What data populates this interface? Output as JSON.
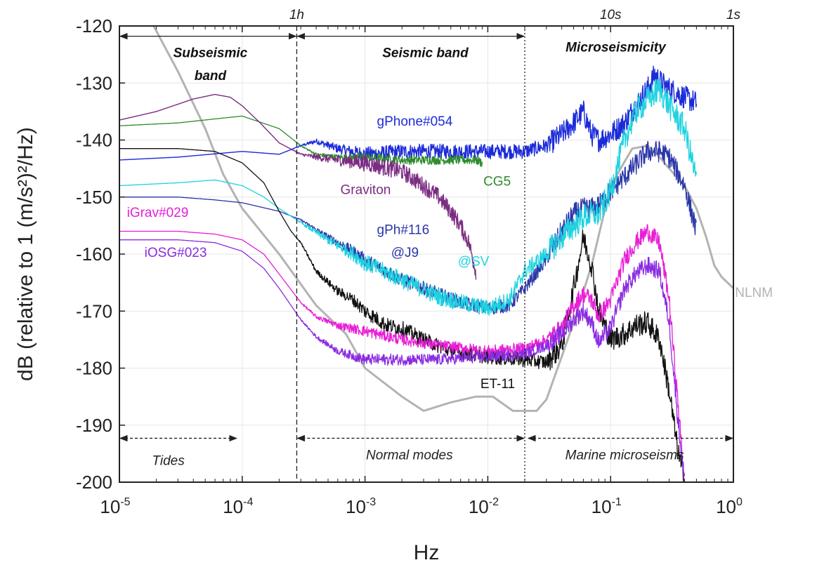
{
  "chart_data": {
    "type": "line",
    "xlabel": "Hz",
    "ylabel": "dB (relative to 1 (m/s²)²/Hz)",
    "x_scale": "log",
    "xlim": [
      1e-05,
      1
    ],
    "ylim": [
      -200,
      -120
    ],
    "x_ticks": [
      {
        "value": 1e-05,
        "base": "10",
        "exp": "-5"
      },
      {
        "value": 0.0001,
        "base": "10",
        "exp": "-4"
      },
      {
        "value": 0.001,
        "base": "10",
        "exp": "-3"
      },
      {
        "value": 0.01,
        "base": "10",
        "exp": "-2"
      },
      {
        "value": 0.1,
        "base": "10",
        "exp": "-1"
      },
      {
        "value": 1,
        "base": "10",
        "exp": "0"
      }
    ],
    "y_ticks": [
      -120,
      -130,
      -140,
      -150,
      -160,
      -170,
      -180,
      -190,
      -200
    ],
    "top_periods": [
      {
        "label": "1h",
        "x": 0.000278
      },
      {
        "label": "10s",
        "x": 0.1
      },
      {
        "label": "1s",
        "x": 1
      }
    ],
    "band_titles": [
      {
        "label": "Subseismic",
        "x": 5.5e-05,
        "y": -125.5
      },
      {
        "label": "band",
        "x": 5.5e-05,
        "y": -129.5
      },
      {
        "label": "Seismic band",
        "x": 0.0031,
        "y": -125.5
      },
      {
        "label": "Microseismicity",
        "x": 0.11,
        "y": -124.5
      }
    ],
    "bottom_regions": [
      {
        "label": "Tides",
        "x": 2.5e-05,
        "y": -197
      },
      {
        "label": "Normal modes",
        "x": 0.0023,
        "y": -196
      },
      {
        "label": "Marine microseisms",
        "x": 0.13,
        "y": -196
      }
    ],
    "dividers": [
      {
        "x": 0.000278,
        "style": "dashed"
      },
      {
        "x": 0.02,
        "style": "dotted"
      }
    ],
    "series": [
      {
        "name": "NLNM",
        "color": "#b3b3b3",
        "width": 3,
        "x": [
          1.9e-05,
          3e-05,
          5e-05,
          7e-05,
          0.0001,
          0.0002,
          0.0004,
          0.0007,
          0.001,
          0.002,
          0.003,
          0.005,
          0.008,
          0.011,
          0.016,
          0.025,
          0.03,
          0.04,
          0.05,
          0.07,
          0.1,
          0.15,
          0.2,
          0.25,
          0.3,
          0.4,
          0.5,
          0.6,
          0.7,
          0.8,
          1
        ],
        "y": [
          -120,
          -128,
          -138,
          -146,
          -152,
          -160,
          -169,
          -174,
          -180,
          -185,
          -187.5,
          -186,
          -185,
          -185,
          -187.5,
          -187.5,
          -185.5,
          -178,
          -172,
          -162,
          -148,
          -141.5,
          -141,
          -143,
          -145,
          -148,
          -152,
          -157,
          -162,
          -164,
          -166
        ],
        "label": {
          "text": "NLNM",
          "x": 1.03,
          "y": -167.5,
          "color": "#b3b3b3",
          "size": 27
        }
      },
      {
        "name": "gPhone#054",
        "color": "#1c2bd9",
        "width": 1.4,
        "x": [
          1e-05,
          3e-05,
          0.0001,
          0.0002,
          0.0003,
          0.0004,
          0.0006,
          0.001,
          0.002,
          0.005,
          0.01,
          0.02,
          0.03,
          0.04,
          0.05,
          0.06,
          0.07,
          0.08,
          0.1,
          0.13,
          0.16,
          0.2,
          0.23,
          0.26,
          0.3,
          0.4,
          0.5
        ],
        "y": [
          -143.5,
          -143,
          -142,
          -142.5,
          -141,
          -140.2,
          -141.5,
          -142.5,
          -142,
          -142,
          -142,
          -142,
          -141,
          -139,
          -137,
          -135,
          -139,
          -140,
          -139,
          -137,
          -134,
          -131,
          -128.5,
          -130,
          -131,
          -132.5,
          -133.5
        ],
        "noise": 1.3,
        "label": {
          "text": "gPhone#054",
          "x": 0.00125,
          "y": -137.5,
          "color": "#1c2bd9",
          "size": 19
        }
      },
      {
        "name": "CG5",
        "color": "#2e8b2e",
        "width": 1.3,
        "x": [
          1e-05,
          3e-05,
          6e-05,
          0.0001,
          0.0002,
          0.0003,
          0.0004,
          0.0006,
          0.001,
          0.002,
          0.004,
          0.006,
          0.008,
          0.009
        ],
        "y": [
          -137.5,
          -137,
          -136.3,
          -135.8,
          -138,
          -141,
          -142.5,
          -143,
          -143,
          -143.5,
          -143.5,
          -143.5,
          -143.5,
          -144
        ],
        "noise": 0.8,
        "label": {
          "text": "CG5",
          "x": 0.0092,
          "y": -148,
          "color": "#2e8b2e",
          "size": 19
        }
      },
      {
        "name": "Graviton",
        "color": "#7b2d82",
        "width": 1.4,
        "x": [
          1e-05,
          2e-05,
          4e-05,
          6e-05,
          8e-05,
          0.0001,
          0.00014,
          0.0002,
          0.0003,
          0.0004,
          0.0006,
          0.001,
          0.002,
          0.003,
          0.004,
          0.005,
          0.006,
          0.007,
          0.008
        ],
        "y": [
          -136.5,
          -135,
          -132.8,
          -132,
          -132.5,
          -134,
          -137,
          -140.5,
          -142.5,
          -143,
          -143.5,
          -144,
          -145.5,
          -148,
          -150,
          -152.5,
          -155,
          -158,
          -163
        ],
        "noise": 1.5,
        "label": {
          "text": "Graviton",
          "x": 0.00063,
          "y": -149.5,
          "color": "#7b2d82",
          "size": 19
        }
      },
      {
        "name": "gPh#116 @J9",
        "color": "#2a36a8",
        "width": 1.3,
        "x": [
          1e-05,
          3e-05,
          6e-05,
          0.0001,
          0.0002,
          0.0003,
          0.0005,
          0.0008,
          0.001,
          0.002,
          0.004,
          0.006,
          0.01,
          0.015,
          0.02,
          0.03,
          0.04,
          0.05,
          0.06,
          0.07,
          0.08,
          0.1,
          0.15,
          0.2,
          0.25,
          0.3,
          0.4,
          0.5
        ],
        "y": [
          -150,
          -150,
          -150.5,
          -151,
          -152.5,
          -154,
          -157,
          -159.5,
          -161,
          -164.5,
          -167,
          -168.5,
          -169.5,
          -169,
          -166,
          -161,
          -156,
          -153,
          -152,
          -152,
          -151.5,
          -149,
          -145,
          -142,
          -142,
          -143,
          -148,
          -156
        ],
        "noise": 1.2,
        "label": {
          "text": "gPh#116",
          "x": 0.00125,
          "y": -156.5,
          "color": "#2a36a8",
          "size": 19
        }
      },
      {
        "name": "@SV",
        "color": "#1fd2e0",
        "width": 1.3,
        "x": [
          1e-05,
          3e-05,
          6e-05,
          0.0001,
          0.00015,
          0.0002,
          0.0003,
          0.0005,
          0.0008,
          0.001,
          0.002,
          0.004,
          0.006,
          0.01,
          0.015,
          0.02,
          0.03,
          0.04,
          0.05,
          0.06,
          0.07,
          0.08,
          0.1,
          0.13,
          0.16,
          0.2,
          0.25,
          0.3,
          0.4,
          0.5
        ],
        "y": [
          -148,
          -147.5,
          -147,
          -148,
          -150,
          -152,
          -154.5,
          -157.5,
          -160,
          -161.5,
          -164.5,
          -167.5,
          -168.5,
          -169.5,
          -168,
          -163,
          -160,
          -157,
          -155,
          -153.5,
          -153,
          -153,
          -149,
          -140,
          -135,
          -133,
          -131,
          -134,
          -138,
          -147
        ],
        "noise": 1.5,
        "label": {
          "text": "@SV",
          "x": 0.0057,
          "y": -162,
          "color": "#1fd2e0",
          "size": 19
        }
      },
      {
        "name": "ET-11",
        "color": "#111111",
        "width": 1.3,
        "x": [
          1e-05,
          3e-05,
          6e-05,
          0.0001,
          0.00015,
          0.0002,
          0.00025,
          0.0003,
          0.0004,
          0.0006,
          0.0008,
          0.001,
          0.0015,
          0.002,
          0.003,
          0.005,
          0.01,
          0.02,
          0.03,
          0.04,
          0.05,
          0.06,
          0.07,
          0.08,
          0.1,
          0.13,
          0.16,
          0.2,
          0.25,
          0.3,
          0.35,
          0.4
        ],
        "y": [
          -141.5,
          -141.5,
          -142,
          -144,
          -147.5,
          -152.5,
          -156,
          -158,
          -163,
          -166.5,
          -168,
          -170,
          -172.5,
          -173,
          -175,
          -177,
          -178,
          -178.5,
          -179,
          -176,
          -166,
          -157,
          -162,
          -170,
          -175,
          -174,
          -172.5,
          -172,
          -175,
          -184,
          -194,
          -200
        ],
        "noise": 1.3,
        "label": {
          "text": "ET-11",
          "x": 0.0087,
          "y": -183.5,
          "color": "#111111",
          "size": 19
        }
      },
      {
        "name": "iGrav#029",
        "color": "#e81ed6",
        "width": 1.3,
        "x": [
          1e-05,
          3e-05,
          6e-05,
          0.0001,
          0.00015,
          0.0002,
          0.0003,
          0.0004,
          0.0006,
          0.001,
          0.002,
          0.004,
          0.01,
          0.02,
          0.03,
          0.04,
          0.05,
          0.06,
          0.07,
          0.08,
          0.1,
          0.13,
          0.16,
          0.2,
          0.25,
          0.3,
          0.35,
          0.4
        ],
        "y": [
          -156,
          -156,
          -156.5,
          -157.5,
          -160,
          -163.5,
          -168.5,
          -171,
          -172.5,
          -173.5,
          -175,
          -176,
          -177,
          -176.5,
          -175,
          -173,
          -169,
          -167,
          -168,
          -171,
          -168,
          -161,
          -158,
          -156,
          -158,
          -168,
          -185,
          -200
        ],
        "noise": 1.0,
        "label": {
          "text": "iGrav#029",
          "x": 1.15e-05,
          "y": -153.5,
          "color": "#e81ed6",
          "size": 19
        }
      },
      {
        "name": "iOSG#023",
        "color": "#8a2be2",
        "width": 1.3,
        "x": [
          1e-05,
          3e-05,
          6e-05,
          0.0001,
          0.00015,
          0.0002,
          0.0003,
          0.0004,
          0.0006,
          0.001,
          0.002,
          0.004,
          0.01,
          0.02,
          0.03,
          0.04,
          0.05,
          0.06,
          0.07,
          0.08,
          0.1,
          0.13,
          0.16,
          0.2,
          0.25,
          0.3,
          0.35,
          0.4
        ],
        "y": [
          -157.5,
          -157.5,
          -158,
          -159.5,
          -162.5,
          -166,
          -171.5,
          -174.5,
          -177,
          -178.5,
          -178.5,
          -178.5,
          -178,
          -177.5,
          -176,
          -174,
          -171.5,
          -170,
          -172,
          -175.5,
          -173,
          -166,
          -163.5,
          -162,
          -163,
          -172,
          -188,
          -200
        ],
        "noise": 1.0,
        "label": {
          "text": "iOSG#023",
          "x": 1.6e-05,
          "y": -160.5,
          "color": "#8a2be2",
          "size": 19
        }
      }
    ],
    "extra_labels": [
      {
        "text": "@J9",
        "x": 0.00163,
        "y": -160.5,
        "color": "#2a36a8",
        "size": 19
      }
    ]
  }
}
